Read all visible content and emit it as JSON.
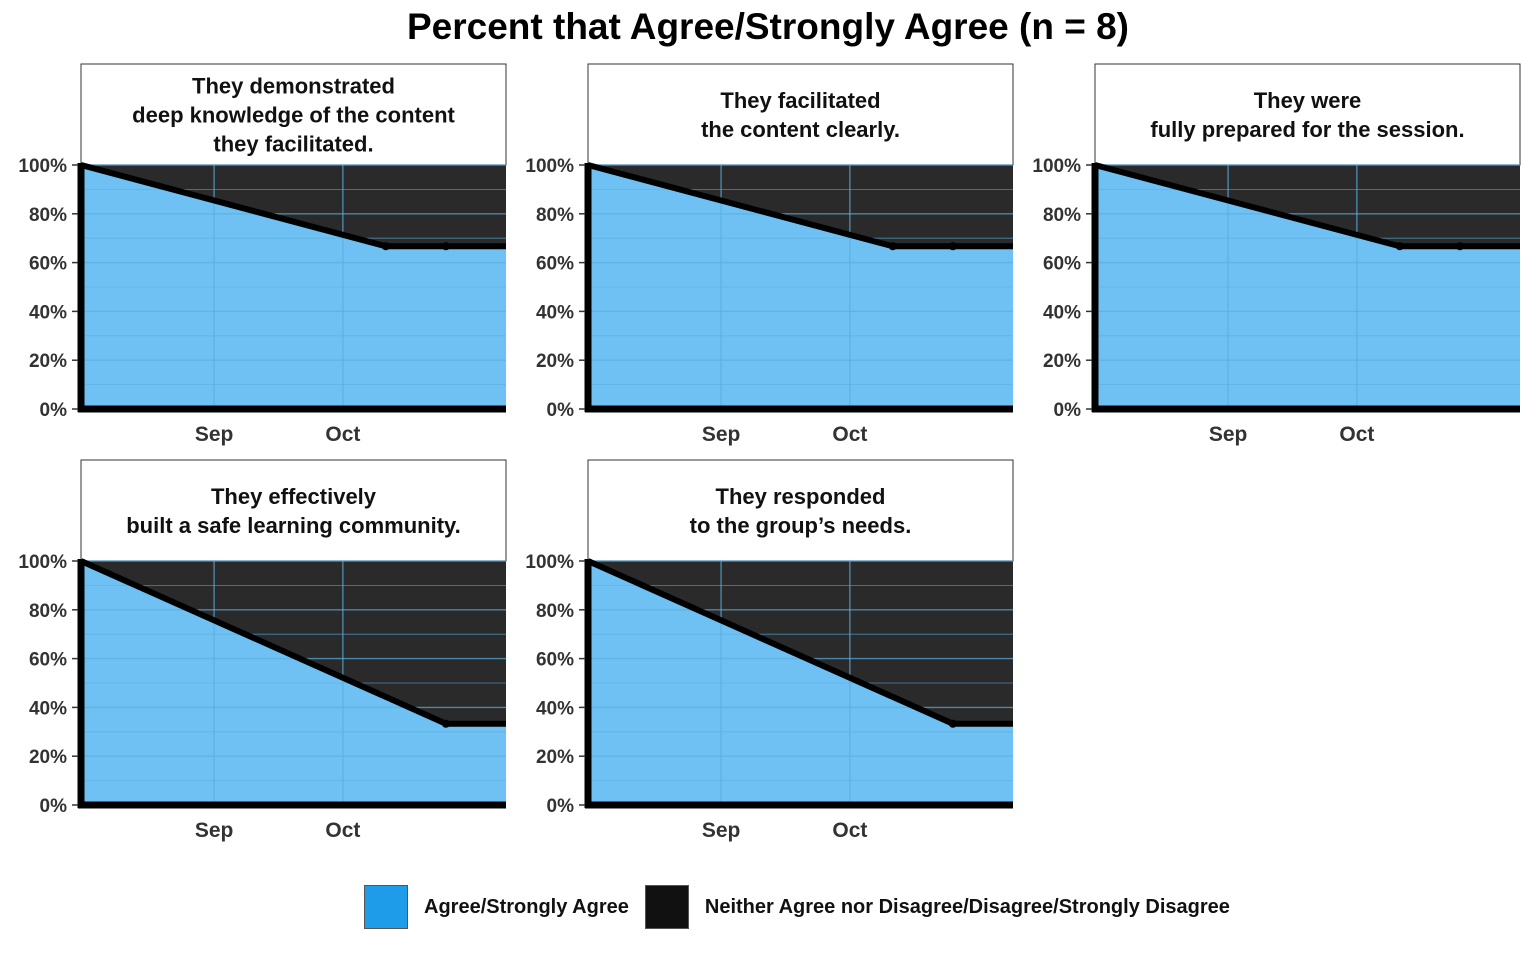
{
  "title": "Percent that Agree/Strongly Agree (n = 8)",
  "colors": {
    "agree": "#6ec1f2",
    "agree_legend": "#1e9be9",
    "neutral": "#2a2a2a",
    "neutral_legend": "#111111",
    "line": "#000000",
    "grid": "#5aaee0"
  },
  "legend": {
    "agree_label": "Agree/Strongly Agree",
    "neutral_label": "Neither Agree nor Disagree/Disagree/Strongly Disagree"
  },
  "chart_data": [
    {
      "type": "area",
      "title": "They demonstrated\ndeep knowledge of the content\nthey facilitated.",
      "x": [
        "2019-08-01",
        "2019-10-11",
        "2019-10-25"
      ],
      "xlim": [
        "2019-08-01",
        "2019-11-08"
      ],
      "xticks": [
        {
          "date": "2019-09-01",
          "label": "Sep"
        },
        {
          "date": "2019-10-01",
          "label": "Oct"
        }
      ],
      "series": [
        {
          "name": "Agree/Strongly Agree",
          "values": [
            100,
            66.7,
            66.7
          ]
        },
        {
          "name": "Neither Agree nor Disagree/Disagree/Strongly Disagree",
          "values": [
            0,
            33.3,
            33.3
          ]
        }
      ],
      "ylim": [
        0,
        100
      ],
      "yticks": [
        "0%",
        "20%",
        "40%",
        "60%",
        "80%",
        "100%"
      ],
      "stacked": true
    },
    {
      "type": "area",
      "title": "They facilitated\nthe content clearly.",
      "x": [
        "2019-08-01",
        "2019-10-11",
        "2019-10-25"
      ],
      "xlim": [
        "2019-08-01",
        "2019-11-08"
      ],
      "xticks": [
        {
          "date": "2019-09-01",
          "label": "Sep"
        },
        {
          "date": "2019-10-01",
          "label": "Oct"
        }
      ],
      "series": [
        {
          "name": "Agree/Strongly Agree",
          "values": [
            100,
            66.7,
            66.7
          ]
        },
        {
          "name": "Neither Agree nor Disagree/Disagree/Strongly Disagree",
          "values": [
            0,
            33.3,
            33.3
          ]
        }
      ],
      "ylim": [
        0,
        100
      ],
      "yticks": [
        "0%",
        "20%",
        "40%",
        "60%",
        "80%",
        "100%"
      ],
      "stacked": true
    },
    {
      "type": "area",
      "title": "They were\nfully prepared for the session.",
      "x": [
        "2019-08-01",
        "2019-10-11",
        "2019-10-25"
      ],
      "xlim": [
        "2019-08-01",
        "2019-11-08"
      ],
      "xticks": [
        {
          "date": "2019-09-01",
          "label": "Sep"
        },
        {
          "date": "2019-10-01",
          "label": "Oct"
        }
      ],
      "series": [
        {
          "name": "Agree/Strongly Agree",
          "values": [
            100,
            66.7,
            66.7
          ]
        },
        {
          "name": "Neither Agree nor Disagree/Disagree/Strongly Disagree",
          "values": [
            0,
            33.3,
            33.3
          ]
        }
      ],
      "ylim": [
        0,
        100
      ],
      "yticks": [
        "0%",
        "20%",
        "40%",
        "60%",
        "80%",
        "100%"
      ],
      "stacked": true
    },
    {
      "type": "area",
      "title": "They effectively\nbuilt a safe learning community.",
      "x": [
        "2019-08-01",
        "2019-10-25"
      ],
      "xlim": [
        "2019-08-01",
        "2019-11-08"
      ],
      "xticks": [
        {
          "date": "2019-09-01",
          "label": "Sep"
        },
        {
          "date": "2019-10-01",
          "label": "Oct"
        }
      ],
      "series": [
        {
          "name": "Agree/Strongly Agree",
          "values": [
            100,
            33.3
          ]
        },
        {
          "name": "Neither Agree nor Disagree/Disagree/Strongly Disagree",
          "values": [
            0,
            66.7
          ]
        }
      ],
      "ylim": [
        0,
        100
      ],
      "yticks": [
        "0%",
        "20%",
        "40%",
        "60%",
        "80%",
        "100%"
      ],
      "stacked": true
    },
    {
      "type": "area",
      "title": "They responded\nto the group’s needs.",
      "x": [
        "2019-08-01",
        "2019-10-25"
      ],
      "xlim": [
        "2019-08-01",
        "2019-11-08"
      ],
      "xticks": [
        {
          "date": "2019-09-01",
          "label": "Sep"
        },
        {
          "date": "2019-10-01",
          "label": "Oct"
        }
      ],
      "series": [
        {
          "name": "Agree/Strongly Agree",
          "values": [
            100,
            33.3
          ]
        },
        {
          "name": "Neither Agree nor Disagree/Disagree/Strongly Disagree",
          "values": [
            0,
            66.7
          ]
        }
      ],
      "ylim": [
        0,
        100
      ],
      "yticks": [
        "0%",
        "20%",
        "40%",
        "60%",
        "80%",
        "100%"
      ],
      "stacked": true
    }
  ]
}
